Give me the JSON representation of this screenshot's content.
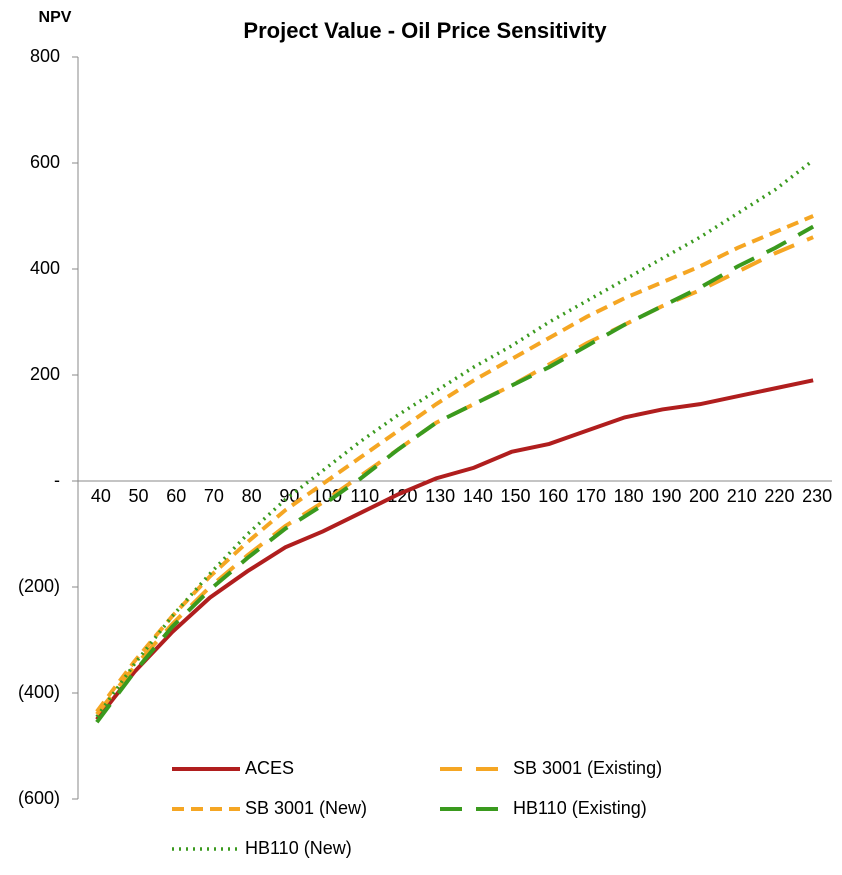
{
  "chart_data": {
    "type": "line",
    "title": "Project Value - Oil Price Sensitivity",
    "y_label": "NPV",
    "categories": [
      "40",
      "50",
      "60",
      "70",
      "80",
      "90",
      "100",
      "110",
      "120",
      "130",
      "140",
      "150",
      "160",
      "170",
      "180",
      "190",
      "200",
      "210",
      "220",
      "230"
    ],
    "ylim": [
      -600,
      800
    ],
    "yticks": [
      800,
      600,
      400,
      200,
      {
        "value": 0,
        "label": "-"
      },
      {
        "value": -200,
        "label": "(200)"
      },
      {
        "value": -400,
        "label": "(400)"
      },
      {
        "value": -600,
        "label": "(600)"
      }
    ],
    "grid": false,
    "series": [
      {
        "name": "ACES",
        "color": "#b01e1e",
        "style": "solid",
        "values": [
          -450,
          -360,
          -285,
          -220,
          -170,
          -125,
          -95,
          -60,
          -25,
          5,
          25,
          55,
          70,
          95,
          120,
          135,
          145,
          160,
          175,
          190
        ]
      },
      {
        "name": "SB 3001 (Existing)",
        "color": "#f5a623",
        "style": "longdash",
        "values": [
          -440,
          -350,
          -270,
          -200,
          -140,
          -85,
          -40,
          10,
          60,
          110,
          145,
          180,
          220,
          260,
          295,
          330,
          360,
          395,
          430,
          460
        ]
      },
      {
        "name": "SB 3001 (New)",
        "color": "#f5a623",
        "style": "dash",
        "values": [
          -435,
          -340,
          -255,
          -180,
          -115,
          -55,
          -5,
          45,
          95,
          145,
          190,
          230,
          270,
          310,
          345,
          375,
          405,
          440,
          470,
          500
        ]
      },
      {
        "name": "HB110 (Existing)",
        "color": "#3a9a1e",
        "style": "longdash",
        "values": [
          -455,
          -360,
          -275,
          -205,
          -145,
          -90,
          -45,
          5,
          60,
          110,
          145,
          180,
          215,
          255,
          295,
          330,
          365,
          405,
          440,
          480
        ]
      },
      {
        "name": "HB110 (New)",
        "color": "#3a9a1e",
        "style": "dot",
        "values": [
          -445,
          -345,
          -255,
          -175,
          -100,
          -35,
          20,
          75,
          125,
          170,
          215,
          255,
          300,
          340,
          380,
          420,
          460,
          505,
          550,
          605
        ]
      }
    ]
  }
}
